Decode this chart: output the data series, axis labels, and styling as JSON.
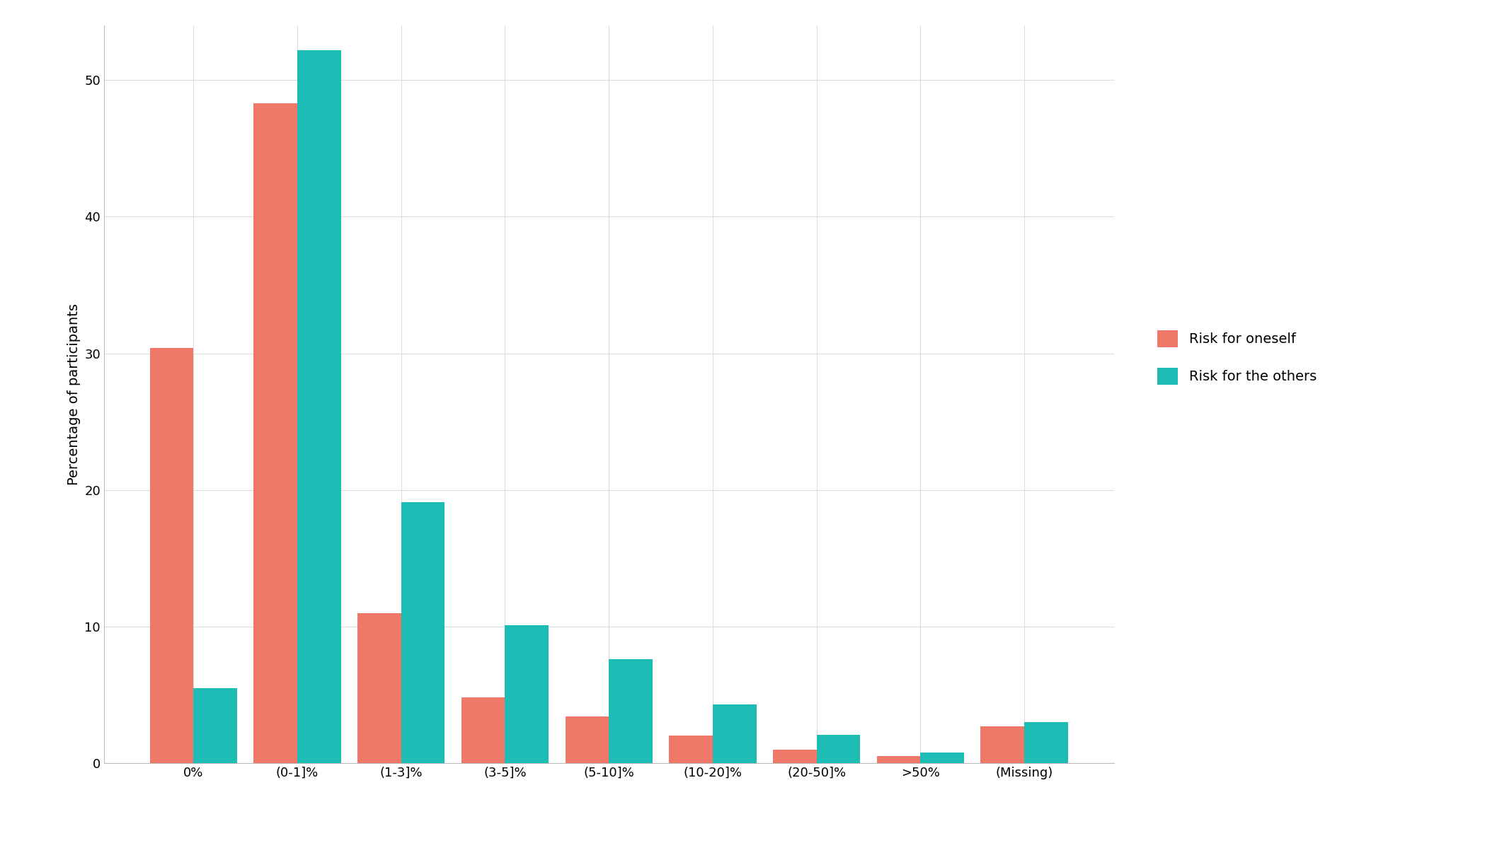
{
  "categories": [
    "0%",
    "(0-1]%",
    "(1-3]%",
    "(3-5]%",
    "(5-10]%",
    "(10-20]%",
    "(20-50]%",
    ">50%",
    "(Missing)"
  ],
  "risk_oneself": [
    30.4,
    48.3,
    11.0,
    4.8,
    3.4,
    2.0,
    1.0,
    0.5,
    2.7
  ],
  "risk_others": [
    5.5,
    52.2,
    19.1,
    10.1,
    7.6,
    4.3,
    2.1,
    0.8,
    3.0
  ],
  "color_oneself": "#F07868",
  "color_others": "#1DBDB5",
  "ylabel": "Percentage of participants",
  "legend_oneself": "Risk for oneself",
  "legend_others": "Risk for the others",
  "ylim": [
    0,
    54
  ],
  "yticks": [
    0,
    10,
    20,
    30,
    40,
    50
  ],
  "background_color": "#FFFFFF",
  "grid_color": "#DCDCDC",
  "bar_width": 0.42,
  "legend_fontsize": 14,
  "tick_fontsize": 13,
  "ylabel_fontsize": 14
}
